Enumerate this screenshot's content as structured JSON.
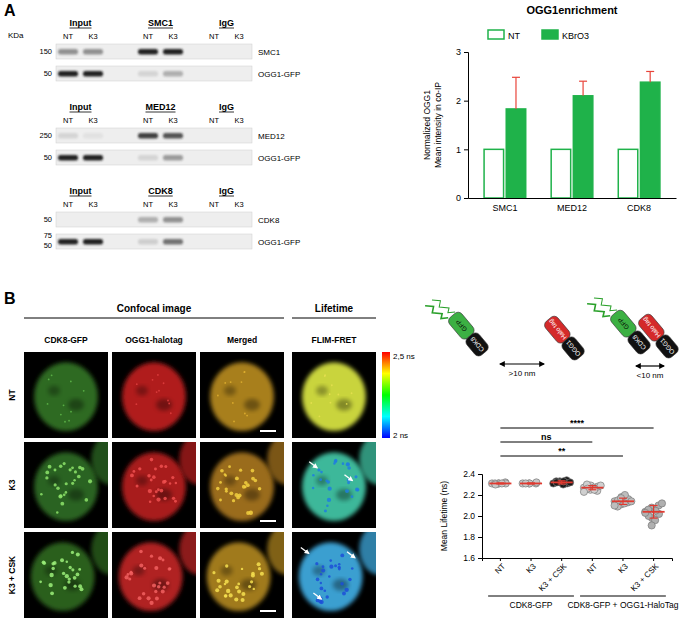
{
  "chart_data": [
    {
      "type": "bar",
      "title": "OGG1enrichment",
      "y_label": [
        "Normalized OGG1",
        "Mean intensity in co-IP"
      ],
      "categories": [
        "SMC1",
        "MED12",
        "CDK8"
      ],
      "series": [
        {
          "name": "NT",
          "color": "#1fb24a",
          "marker": "hollow",
          "values": [
            1,
            1,
            1
          ]
        },
        {
          "name": "KBrO3",
          "color": "#1fb24a",
          "values": [
            1.83,
            2.1,
            2.38
          ],
          "errors": [
            0.65,
            0.3,
            0.22
          ]
        }
      ],
      "ylim": [
        0,
        3
      ],
      "yticks": [
        0,
        1,
        2,
        3
      ],
      "legend": "top"
    },
    {
      "type": "scatter",
      "y_label": "Mean Lifetime (ns)",
      "categories": [
        "NT",
        "K3",
        "K3 + CSK",
        "NT",
        "K3",
        "K3 + CSK"
      ],
      "values": [
        [
          2.31,
          2.31,
          2.31,
          2.32,
          2.31,
          2.31,
          2.3,
          2.31
        ],
        [
          2.31,
          2.31,
          2.31,
          2.31,
          2.32,
          2.31
        ],
        [
          2.31,
          2.33,
          2.32,
          2.34,
          2.31,
          2.33,
          2.32,
          2.3,
          2.33,
          2.32
        ],
        [
          2.27,
          2.25,
          2.29,
          2.24,
          2.28,
          2.3,
          2.26,
          2.27,
          2.25,
          2.29,
          2.23
        ],
        [
          2.14,
          2.11,
          2.18,
          2.13,
          2.16,
          2.09,
          2.15,
          2.12,
          2.2,
          2.14,
          2.1,
          2.17
        ],
        [
          2.04,
          2.08,
          1.98,
          2.1,
          2.02,
          2.06,
          2.0,
          1.96,
          2.05,
          2.12,
          2.03,
          1.91
        ]
      ],
      "means": [
        2.31,
        2.31,
        2.32,
        2.27,
        2.14,
        2.04
      ],
      "errors": [
        0.005,
        0.005,
        0.015,
        0.02,
        0.03,
        0.06
      ],
      "colors": [
        "#c8c8c8",
        "#c8c8c8",
        "#1a1a1a",
        "#d0d0d0",
        "#bdbdbd",
        "#b0b0b0"
      ],
      "groups": [
        {
          "label": "CDK8-GFP",
          "start": 0,
          "end": 2
        },
        {
          "label": "CDK8-GFP + OGG1-HaloTag",
          "start": 3,
          "end": 5
        }
      ],
      "significance": [
        {
          "from": 0,
          "to": 3,
          "label": "ns"
        },
        {
          "from": 0,
          "to": 4,
          "label": "**"
        },
        {
          "from": 0,
          "to": 5,
          "label": "****"
        }
      ],
      "ylim": [
        1.6,
        2.4
      ],
      "yticks": [
        1.6,
        1.8,
        {
          "value": 2,
          "label": "2.0"
        },
        2.2,
        2.4
      ]
    }
  ],
  "figure": {
    "panel_labels": [
      "A",
      "B"
    ],
    "blots": {
      "kda": "KDa",
      "conditions": [
        "NT",
        "K3"
      ],
      "groups": [
        {
          "headers": [
            "Input",
            "SMC1",
            "IgG"
          ],
          "bands": [
            "SMC1",
            "OGG1-GFP"
          ],
          "markers": [
            [
              150
            ],
            [
              50
            ]
          ]
        },
        {
          "headers": [
            "Input",
            "MED12",
            "IgG"
          ],
          "bands": [
            "MED12",
            "OGG1-GFP"
          ],
          "markers": [
            [
              250
            ],
            [
              50
            ]
          ]
        },
        {
          "headers": [
            "Input",
            "CDK8",
            "IgG"
          ],
          "bands": [
            "CDK8",
            "OGG1-GFP"
          ],
          "markers": [
            [
              50
            ],
            [
              75,
              50
            ]
          ]
        }
      ]
    },
    "microscopy": {
      "header": "Confocal image",
      "lifetime_header": "Lifetime",
      "columns": [
        "CDK8-GFP",
        "OGG1-halotag",
        "Merged",
        "FLIM-FRET"
      ],
      "rows": [
        "NT",
        "K3",
        "K3 + CSK"
      ],
      "colorbar": {
        "max_label": "2,5 ns",
        "min_label": "2 ns"
      }
    },
    "schematic": {
      "donor": "GFP",
      "donor_protein": "CDK8",
      "acceptor": "Halo tag",
      "acceptor_protein": "OGG1",
      "far": ">10 nm",
      "near": "<10 nm"
    }
  }
}
